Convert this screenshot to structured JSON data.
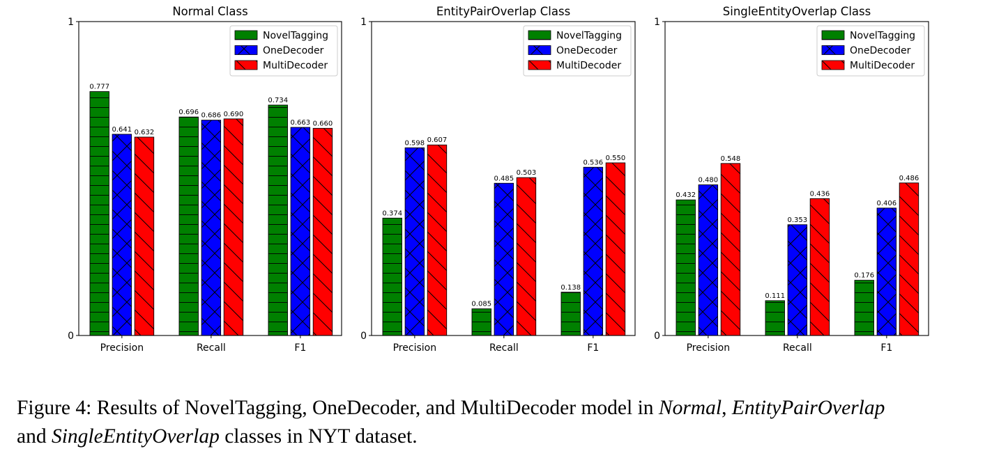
{
  "chart_data": [
    {
      "type": "bar",
      "title": "Normal Class",
      "categories": [
        "Precision",
        "Recall",
        "F1"
      ],
      "ylim": [
        0,
        1
      ],
      "yticks": [
        "0",
        "1"
      ],
      "legend_position": "top-right",
      "series": [
        {
          "name": "NovelTagging",
          "values": [
            0.777,
            0.696,
            0.734
          ],
          "labels": [
            "0.777",
            "0.696",
            "0.734"
          ],
          "color": "#008000",
          "hatch": "horizontal"
        },
        {
          "name": "OneDecoder",
          "values": [
            0.641,
            0.686,
            0.663
          ],
          "labels": [
            "0.641",
            "0.686",
            "0.663"
          ],
          "color": "#0000ff",
          "hatch": "cross"
        },
        {
          "name": "MultiDecoder",
          "values": [
            0.632,
            0.69,
            0.66
          ],
          "labels": [
            "0.632",
            "0.690",
            "0.660"
          ],
          "color": "#ff0000",
          "hatch": "backslash"
        }
      ]
    },
    {
      "type": "bar",
      "title": "EntityPairOverlap Class",
      "categories": [
        "Precision",
        "Recall",
        "F1"
      ],
      "ylim": [
        0,
        1
      ],
      "yticks": [
        "0",
        "1"
      ],
      "legend_position": "top-right",
      "series": [
        {
          "name": "NovelTagging",
          "values": [
            0.374,
            0.085,
            0.138
          ],
          "labels": [
            "0.374",
            "0.085",
            "0.138"
          ],
          "color": "#008000",
          "hatch": "horizontal"
        },
        {
          "name": "OneDecoder",
          "values": [
            0.598,
            0.485,
            0.536
          ],
          "labels": [
            "0.598",
            "0.485",
            "0.536"
          ],
          "color": "#0000ff",
          "hatch": "cross"
        },
        {
          "name": "MultiDecoder",
          "values": [
            0.607,
            0.503,
            0.55
          ],
          "labels": [
            "0.607",
            "0.503",
            "0.550"
          ],
          "color": "#ff0000",
          "hatch": "backslash"
        }
      ]
    },
    {
      "type": "bar",
      "title": "SingleEntityOverlap Class",
      "categories": [
        "Precision",
        "Recall",
        "F1"
      ],
      "ylim": [
        0,
        1
      ],
      "yticks": [
        "0",
        "1"
      ],
      "legend_position": "top-right",
      "series": [
        {
          "name": "NovelTagging",
          "values": [
            0.432,
            0.111,
            0.176
          ],
          "labels": [
            "0.432",
            "0.111",
            "0.176"
          ],
          "color": "#008000",
          "hatch": "horizontal"
        },
        {
          "name": "OneDecoder",
          "values": [
            0.48,
            0.353,
            0.406
          ],
          "labels": [
            "0.480",
            "0.353",
            "0.406"
          ],
          "color": "#0000ff",
          "hatch": "cross"
        },
        {
          "name": "MultiDecoder",
          "values": [
            0.548,
            0.436,
            0.486
          ],
          "labels": [
            "0.548",
            "0.436",
            "0.486"
          ],
          "color": "#ff0000",
          "hatch": "backslash"
        }
      ]
    }
  ],
  "caption": {
    "label": "Figure 4:",
    "text1": " Results of NovelTagging, OneDecoder, and MultiDecoder model in ",
    "em1": "Normal",
    "text2": ", ",
    "em2": "EntityPairOverlap",
    "text3": "",
    "text4": "and ",
    "em3": "SingleEntityOverlap",
    "text5": " classes in NYT dataset."
  }
}
